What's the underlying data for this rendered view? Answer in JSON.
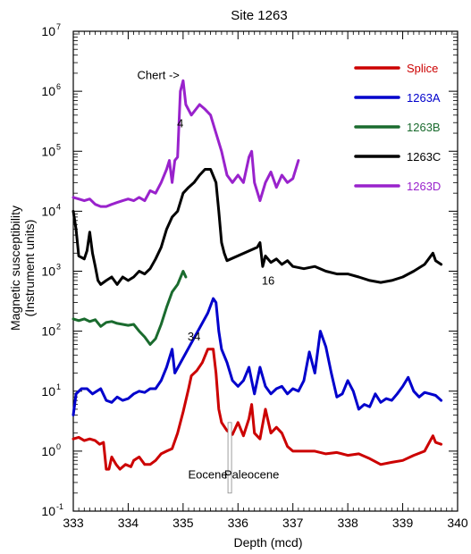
{
  "chart_data": {
    "type": "line",
    "title": "Site 1263",
    "xlabel": "Depth (mcd)",
    "ylabel_line1": "Magnetic susceptibility",
    "ylabel_line2": "(Instrument units)",
    "xlim": [
      333,
      340
    ],
    "ylim_log10": [
      -1,
      7
    ],
    "log_y": true,
    "xticks": [
      "333",
      "334",
      "335",
      "336",
      "337",
      "338",
      "339",
      "340"
    ],
    "yticks": [
      {
        "base": "10",
        "exp": "-1"
      },
      {
        "base": "10",
        "exp": "0"
      },
      {
        "base": "10",
        "exp": "1"
      },
      {
        "base": "10",
        "exp": "2"
      },
      {
        "base": "10",
        "exp": "3"
      },
      {
        "base": "10",
        "exp": "4"
      },
      {
        "base": "10",
        "exp": "5"
      },
      {
        "base": "10",
        "exp": "6"
      },
      {
        "base": "10",
        "exp": "7"
      }
    ],
    "legend_position": "top-right",
    "series": [
      {
        "name": "Splice",
        "color": "#cc0000",
        "points": [
          [
            333.0,
            1.6
          ],
          [
            333.1,
            1.7
          ],
          [
            333.2,
            1.5
          ],
          [
            333.3,
            1.6
          ],
          [
            333.4,
            1.5
          ],
          [
            333.48,
            1.3
          ],
          [
            333.55,
            1.4
          ],
          [
            333.6,
            0.5
          ],
          [
            333.65,
            0.5
          ],
          [
            333.7,
            0.8
          ],
          [
            333.78,
            0.6
          ],
          [
            333.85,
            0.5
          ],
          [
            333.95,
            0.6
          ],
          [
            334.05,
            0.55
          ],
          [
            334.1,
            0.7
          ],
          [
            334.2,
            0.8
          ],
          [
            334.3,
            0.6
          ],
          [
            334.4,
            0.6
          ],
          [
            334.5,
            0.7
          ],
          [
            334.6,
            0.9
          ],
          [
            334.7,
            1.0
          ],
          [
            334.8,
            1.1
          ],
          [
            334.9,
            2.0
          ],
          [
            335.0,
            4.5
          ],
          [
            335.1,
            11
          ],
          [
            335.15,
            18
          ],
          [
            335.25,
            22
          ],
          [
            335.35,
            30
          ],
          [
            335.45,
            50
          ],
          [
            335.55,
            50
          ],
          [
            335.6,
            20
          ],
          [
            335.65,
            5.0
          ],
          [
            335.7,
            3.0
          ],
          [
            335.8,
            2.2
          ],
          [
            335.9,
            1.9
          ],
          [
            336.0,
            3.0
          ],
          [
            336.1,
            1.8
          ],
          [
            336.2,
            3.5
          ],
          [
            336.25,
            6.0
          ],
          [
            336.3,
            2.0
          ],
          [
            336.4,
            1.6
          ],
          [
            336.5,
            5.0
          ],
          [
            336.6,
            2.0
          ],
          [
            336.7,
            2.5
          ],
          [
            336.8,
            2.0
          ],
          [
            336.9,
            1.2
          ],
          [
            337.0,
            1.0
          ],
          [
            337.2,
            1.0
          ],
          [
            337.4,
            1.0
          ],
          [
            337.6,
            0.9
          ],
          [
            337.8,
            0.95
          ],
          [
            338.0,
            0.85
          ],
          [
            338.2,
            0.9
          ],
          [
            338.4,
            0.75
          ],
          [
            338.6,
            0.6
          ],
          [
            338.8,
            0.65
          ],
          [
            339.0,
            0.7
          ],
          [
            339.2,
            0.85
          ],
          [
            339.4,
            1.0
          ],
          [
            339.55,
            1.8
          ],
          [
            339.6,
            1.4
          ],
          [
            339.7,
            1.3
          ]
        ]
      },
      {
        "name": "1263A",
        "color": "#0000cc",
        "points": [
          [
            333.0,
            4.0
          ],
          [
            333.05,
            9.0
          ],
          [
            333.15,
            11
          ],
          [
            333.25,
            11
          ],
          [
            333.35,
            9.0
          ],
          [
            333.5,
            11
          ],
          [
            333.6,
            7.0
          ],
          [
            333.7,
            6.5
          ],
          [
            333.8,
            8.0
          ],
          [
            333.9,
            7.0
          ],
          [
            334.0,
            7.5
          ],
          [
            334.1,
            9.0
          ],
          [
            334.2,
            10
          ],
          [
            334.3,
            9.5
          ],
          [
            334.4,
            11
          ],
          [
            334.5,
            11
          ],
          [
            334.6,
            15
          ],
          [
            334.7,
            25
          ],
          [
            334.8,
            50
          ],
          [
            334.85,
            20
          ],
          [
            335.45,
            200
          ],
          [
            335.55,
            350
          ],
          [
            335.6,
            300
          ],
          [
            335.65,
            100
          ],
          [
            335.7,
            50
          ],
          [
            335.8,
            30
          ],
          [
            335.9,
            15
          ],
          [
            336.0,
            12
          ],
          [
            336.1,
            15
          ],
          [
            336.2,
            25
          ],
          [
            336.25,
            15
          ],
          [
            336.3,
            9.0
          ],
          [
            336.4,
            25
          ],
          [
            336.5,
            12
          ],
          [
            336.6,
            9.0
          ],
          [
            336.7,
            11
          ],
          [
            336.8,
            12
          ],
          [
            336.9,
            9.0
          ],
          [
            337.0,
            11
          ],
          [
            337.1,
            10
          ],
          [
            337.2,
            15
          ],
          [
            337.3,
            45
          ],
          [
            337.4,
            20
          ],
          [
            337.5,
            100
          ],
          [
            337.6,
            55
          ],
          [
            337.7,
            20
          ],
          [
            337.8,
            8.0
          ],
          [
            337.9,
            9.0
          ],
          [
            338.0,
            15
          ],
          [
            338.1,
            10
          ],
          [
            338.2,
            5.0
          ],
          [
            338.3,
            6.0
          ],
          [
            338.4,
            5.5
          ],
          [
            338.5,
            9.0
          ],
          [
            338.6,
            6.5
          ],
          [
            338.7,
            7.5
          ],
          [
            338.8,
            7.0
          ],
          [
            338.9,
            9.0
          ],
          [
            339.0,
            12
          ],
          [
            339.1,
            17
          ],
          [
            339.2,
            10
          ],
          [
            339.3,
            8.0
          ],
          [
            339.4,
            9.5
          ],
          [
            339.5,
            9.0
          ],
          [
            339.6,
            8.5
          ],
          [
            339.7,
            7.0
          ]
        ]
      },
      {
        "name": "1263B",
        "color": "#1a6b2e",
        "points": [
          [
            333.0,
            160
          ],
          [
            333.1,
            150
          ],
          [
            333.2,
            160
          ],
          [
            333.3,
            145
          ],
          [
            333.4,
            155
          ],
          [
            333.5,
            120
          ],
          [
            333.6,
            140
          ],
          [
            333.7,
            145
          ],
          [
            333.8,
            135
          ],
          [
            333.9,
            130
          ],
          [
            334.0,
            125
          ],
          [
            334.1,
            130
          ],
          [
            334.2,
            100
          ],
          [
            334.3,
            80
          ],
          [
            334.4,
            60
          ],
          [
            334.5,
            75
          ],
          [
            334.6,
            130
          ],
          [
            334.7,
            250
          ],
          [
            334.8,
            450
          ],
          [
            334.9,
            600
          ],
          [
            335.0,
            1000
          ],
          [
            335.05,
            800
          ]
        ]
      },
      {
        "name": "1263C",
        "color": "#000000",
        "points": [
          [
            333.0,
            10000
          ],
          [
            333.05,
            5000
          ],
          [
            333.1,
            1800
          ],
          [
            333.2,
            1600
          ],
          [
            333.25,
            2200
          ],
          [
            333.3,
            4500
          ],
          [
            333.35,
            2000
          ],
          [
            333.4,
            1200
          ],
          [
            333.45,
            700
          ],
          [
            333.5,
            600
          ],
          [
            333.6,
            700
          ],
          [
            333.7,
            800
          ],
          [
            333.8,
            600
          ],
          [
            333.9,
            800
          ],
          [
            334.0,
            700
          ],
          [
            334.1,
            800
          ],
          [
            334.2,
            1000
          ],
          [
            334.3,
            900
          ],
          [
            334.4,
            1100
          ],
          [
            334.5,
            1600
          ],
          [
            334.6,
            2500
          ],
          [
            334.7,
            5000
          ],
          [
            334.8,
            8000
          ],
          [
            334.9,
            10000
          ],
          [
            335.0,
            20000
          ],
          [
            335.1,
            25000
          ],
          [
            335.2,
            30000
          ],
          [
            335.3,
            40000
          ],
          [
            335.4,
            50000
          ],
          [
            335.5,
            50000
          ],
          [
            335.6,
            30000
          ],
          [
            335.65,
            10000
          ],
          [
            335.7,
            3000
          ],
          [
            335.75,
            2000
          ],
          [
            335.8,
            1500
          ],
          [
            336.35,
            2500
          ],
          [
            336.4,
            3000
          ],
          [
            336.45,
            1200
          ],
          [
            336.5,
            1800
          ],
          [
            336.6,
            1400
          ],
          [
            336.7,
            1600
          ],
          [
            336.8,
            1300
          ],
          [
            336.9,
            1500
          ],
          [
            337.0,
            1200
          ],
          [
            337.2,
            1100
          ],
          [
            337.4,
            1200
          ],
          [
            337.6,
            1000
          ],
          [
            337.8,
            900
          ],
          [
            338.0,
            900
          ],
          [
            338.2,
            800
          ],
          [
            338.4,
            700
          ],
          [
            338.6,
            650
          ],
          [
            338.8,
            700
          ],
          [
            339.0,
            800
          ],
          [
            339.2,
            1000
          ],
          [
            339.4,
            1300
          ],
          [
            339.55,
            2000
          ],
          [
            339.6,
            1500
          ],
          [
            339.7,
            1300
          ]
        ]
      },
      {
        "name": "1263D",
        "color": "#9922cc",
        "points": [
          [
            333.0,
            17000
          ],
          [
            333.1,
            16000
          ],
          [
            333.2,
            15000
          ],
          [
            333.3,
            16000
          ],
          [
            333.4,
            13000
          ],
          [
            333.5,
            12000
          ],
          [
            333.6,
            12000
          ],
          [
            333.7,
            13000
          ],
          [
            333.8,
            14000
          ],
          [
            333.9,
            15000
          ],
          [
            334.0,
            16000
          ],
          [
            334.1,
            15000
          ],
          [
            334.2,
            17000
          ],
          [
            334.3,
            15000
          ],
          [
            334.4,
            22000
          ],
          [
            334.5,
            20000
          ],
          [
            334.6,
            30000
          ],
          [
            334.7,
            50000
          ],
          [
            334.75,
            70000
          ],
          [
            334.8,
            30000
          ],
          [
            334.85,
            70000
          ],
          [
            334.9,
            80000
          ],
          [
            334.95,
            1000000
          ],
          [
            335.0,
            1500000
          ],
          [
            335.05,
            600000
          ],
          [
            335.15,
            400000
          ],
          [
            335.3,
            600000
          ],
          [
            335.4,
            500000
          ],
          [
            335.5,
            400000
          ],
          [
            335.6,
            200000
          ],
          [
            335.7,
            100000
          ],
          [
            335.8,
            40000
          ],
          [
            335.9,
            30000
          ],
          [
            336.0,
            40000
          ],
          [
            336.1,
            30000
          ],
          [
            336.2,
            80000
          ],
          [
            336.25,
            100000
          ],
          [
            336.3,
            30000
          ],
          [
            336.4,
            15000
          ],
          [
            336.5,
            30000
          ],
          [
            336.6,
            45000
          ],
          [
            336.7,
            25000
          ],
          [
            336.8,
            40000
          ],
          [
            336.9,
            30000
          ],
          [
            337.0,
            35000
          ],
          [
            337.1,
            70000
          ]
        ]
      }
    ],
    "annotations": [
      {
        "text": "Chert ->",
        "x": 334.55,
        "y": 1600000
      },
      {
        "text": "4",
        "x": 334.95,
        "y": 250000
      },
      {
        "text": "16",
        "x": 336.55,
        "y": 600
      },
      {
        "text": "34",
        "x": 335.2,
        "y": 70
      },
      {
        "text": "Eocene",
        "x": 335.45,
        "y": 0.35
      },
      {
        "text": "Paleocene",
        "x": 336.25,
        "y": 0.35
      }
    ],
    "boundary_marker": {
      "x": 335.85,
      "y_top": 3.0,
      "y_bottom": 0.2
    }
  }
}
